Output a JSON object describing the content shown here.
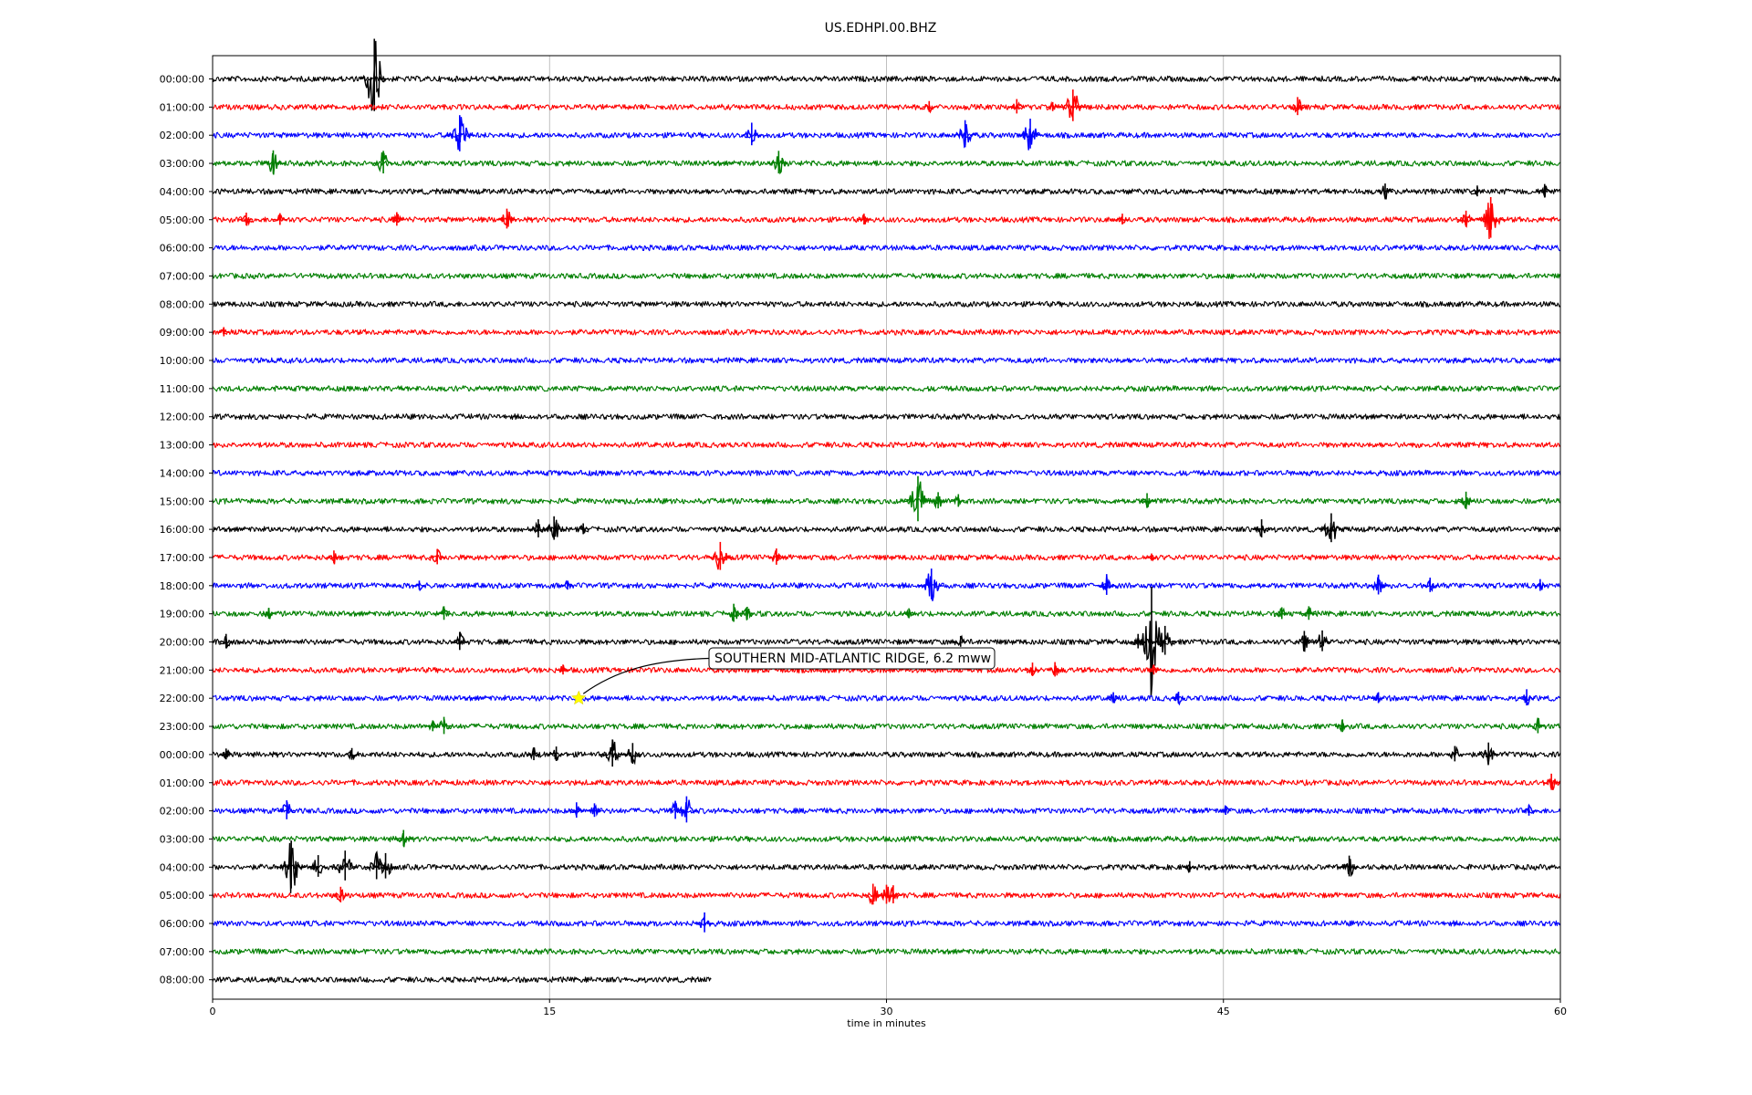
{
  "chart_data": {
    "type": "line",
    "title": "US.EDHPI.00.BHZ",
    "xlabel": "time in minutes",
    "xlim": [
      0,
      60
    ],
    "x_ticks": [
      "0",
      "15",
      "30",
      "45",
      "60"
    ],
    "x_tick_values": [
      0,
      15,
      30,
      45,
      60
    ],
    "grid": "vertical",
    "color_cycle": [
      "#000000",
      "#ff0000",
      "#0000ff",
      "#007f00"
    ],
    "rows": [
      {
        "label": "00:00:00",
        "end_minute": 60,
        "bursts": [
          [
            7.2,
            8.0
          ]
        ]
      },
      {
        "label": "01:00:00",
        "end_minute": 60,
        "bursts": [
          [
            31.9,
            1.2
          ],
          [
            35.8,
            1.6
          ],
          [
            37.4,
            1.0
          ],
          [
            38.3,
            3.5
          ],
          [
            48.3,
            2.0
          ]
        ]
      },
      {
        "label": "02:00:00",
        "end_minute": 60,
        "bursts": [
          [
            11.0,
            4.0
          ],
          [
            24.0,
            2.5
          ],
          [
            33.5,
            3.0
          ],
          [
            36.4,
            3.3
          ]
        ]
      },
      {
        "label": "03:00:00",
        "end_minute": 60,
        "bursts": [
          [
            2.7,
            2.6
          ],
          [
            7.6,
            2.5
          ],
          [
            25.2,
            2.5
          ]
        ]
      },
      {
        "label": "04:00:00",
        "end_minute": 60,
        "bursts": [
          [
            52.2,
            1.6
          ],
          [
            56.3,
            1.2
          ],
          [
            59.3,
            1.5
          ]
        ]
      },
      {
        "label": "05:00:00",
        "end_minute": 60,
        "bursts": [
          [
            1.5,
            1.4
          ],
          [
            3.0,
            1.3
          ],
          [
            8.2,
            1.5
          ],
          [
            13.1,
            2.2
          ],
          [
            29.0,
            1.2
          ],
          [
            40.5,
            1.2
          ],
          [
            55.8,
            1.8
          ],
          [
            56.9,
            4.5
          ]
        ]
      },
      {
        "label": "06:00:00",
        "end_minute": 60,
        "bursts": []
      },
      {
        "label": "07:00:00",
        "end_minute": 60,
        "bursts": []
      },
      {
        "label": "08:00:00",
        "end_minute": 60,
        "bursts": []
      },
      {
        "label": "09:00:00",
        "end_minute": 60,
        "bursts": [
          [
            0.5,
            1.0
          ]
        ]
      },
      {
        "label": "10:00:00",
        "end_minute": 60,
        "bursts": []
      },
      {
        "label": "11:00:00",
        "end_minute": 60,
        "bursts": []
      },
      {
        "label": "12:00:00",
        "end_minute": 60,
        "bursts": []
      },
      {
        "label": "13:00:00",
        "end_minute": 60,
        "bursts": []
      },
      {
        "label": "14:00:00",
        "end_minute": 60,
        "bursts": []
      },
      {
        "label": "15:00:00",
        "end_minute": 60,
        "bursts": [
          [
            31.4,
            5.0
          ],
          [
            32.3,
            1.8
          ],
          [
            33.2,
            1.4
          ],
          [
            41.6,
            1.6
          ],
          [
            55.8,
            1.9
          ]
        ]
      },
      {
        "label": "16:00:00",
        "end_minute": 60,
        "bursts": [
          [
            14.5,
            2.0
          ],
          [
            15.2,
            2.6
          ],
          [
            16.5,
            1.2
          ],
          [
            46.7,
            2.0
          ],
          [
            49.8,
            3.2
          ]
        ]
      },
      {
        "label": "17:00:00",
        "end_minute": 60,
        "bursts": [
          [
            5.4,
            1.4
          ],
          [
            10.0,
            1.7
          ],
          [
            22.6,
            3.1
          ],
          [
            25.1,
            1.8
          ],
          [
            41.8,
            0.8
          ]
        ]
      },
      {
        "label": "18:00:00",
        "end_minute": 60,
        "bursts": [
          [
            9.2,
            1.0
          ],
          [
            15.8,
            1.0
          ],
          [
            32.0,
            3.4
          ],
          [
            39.8,
            2.3
          ],
          [
            51.9,
            2.2
          ],
          [
            54.2,
            1.6
          ],
          [
            59.1,
            1.3
          ]
        ]
      },
      {
        "label": "19:00:00",
        "end_minute": 60,
        "bursts": [
          [
            2.5,
            1.2
          ],
          [
            10.3,
            1.5
          ],
          [
            23.2,
            2.0
          ],
          [
            23.8,
            1.4
          ],
          [
            31.0,
            1.1
          ],
          [
            47.6,
            1.3
          ],
          [
            48.8,
            1.5
          ]
        ]
      },
      {
        "label": "20:00:00",
        "end_minute": 60,
        "bursts": [
          [
            0.6,
            1.6
          ],
          [
            11.0,
            2.0
          ],
          [
            33.3,
            1.2
          ],
          [
            41.2,
            1.6
          ],
          [
            41.8,
            11.0
          ],
          [
            42.4,
            3.2
          ],
          [
            48.6,
            2.2
          ],
          [
            49.4,
            2.3
          ]
        ]
      },
      {
        "label": "21:00:00",
        "end_minute": 60,
        "bursts": [
          [
            15.6,
            1.1
          ],
          [
            36.5,
            1.5
          ],
          [
            37.5,
            1.6
          ],
          [
            41.9,
            1.1
          ]
        ]
      },
      {
        "label": "22:00:00",
        "end_minute": 60,
        "bursts": [
          [
            40.1,
            1.2
          ],
          [
            43.0,
            1.3
          ],
          [
            51.9,
            1.2
          ],
          [
            58.5,
            1.8
          ]
        ]
      },
      {
        "label": "23:00:00",
        "end_minute": 60,
        "bursts": [
          [
            9.8,
            1.2
          ],
          [
            10.3,
            1.9
          ],
          [
            50.3,
            1.4
          ],
          [
            59.0,
            1.7
          ]
        ]
      },
      {
        "label": "00:00:00",
        "end_minute": 60,
        "bursts": [
          [
            0.6,
            1.2
          ],
          [
            6.2,
            1.3
          ],
          [
            14.3,
            1.4
          ],
          [
            15.3,
            1.6
          ],
          [
            17.8,
            3.0
          ],
          [
            18.7,
            2.3
          ],
          [
            55.3,
            1.7
          ],
          [
            56.8,
            2.4
          ]
        ]
      },
      {
        "label": "01:00:00",
        "end_minute": 60,
        "bursts": [
          [
            59.6,
            1.8
          ]
        ]
      },
      {
        "label": "02:00:00",
        "end_minute": 60,
        "bursts": [
          [
            3.3,
            2.1
          ],
          [
            16.2,
            1.7
          ],
          [
            17.0,
            1.5
          ],
          [
            20.6,
            2.0
          ],
          [
            21.1,
            2.9
          ],
          [
            45.1,
            1.0
          ],
          [
            58.6,
            1.2
          ]
        ]
      },
      {
        "label": "03:00:00",
        "end_minute": 60,
        "bursts": [
          [
            8.5,
            1.8
          ]
        ]
      },
      {
        "label": "04:00:00",
        "end_minute": 60,
        "bursts": [
          [
            3.5,
            5.3
          ],
          [
            4.7,
            2.4
          ],
          [
            5.9,
            3.3
          ],
          [
            7.3,
            3.0
          ],
          [
            7.7,
            2.8
          ],
          [
            43.5,
            1.2
          ],
          [
            50.6,
            2.3
          ]
        ]
      },
      {
        "label": "05:00:00",
        "end_minute": 60,
        "bursts": [
          [
            5.7,
            1.7
          ],
          [
            29.4,
            2.3
          ],
          [
            30.0,
            2.1
          ],
          [
            30.3,
            2.0
          ]
        ]
      },
      {
        "label": "06:00:00",
        "end_minute": 60,
        "bursts": [
          [
            21.9,
            2.2
          ]
        ]
      },
      {
        "label": "07:00:00",
        "end_minute": 60,
        "bursts": []
      },
      {
        "label": "08:00:00",
        "end_minute": 22.2,
        "bursts": []
      }
    ],
    "annotations": [
      {
        "text": "SOUTHERN MID-ATLANTIC RIDGE, 6.2 mww",
        "row_index": 22,
        "minute": 16.3,
        "marker": "star",
        "marker_color": "#ffff00"
      }
    ]
  }
}
